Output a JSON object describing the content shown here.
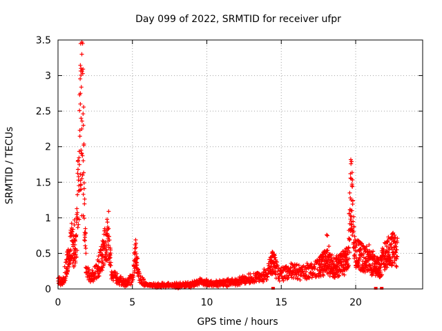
{
  "chart_data": {
    "type": "scatter",
    "title": "Day 099 of 2022, SRMTID for receiver ufpr",
    "xlabel": "GPS time / hours",
    "ylabel": "SRMTID / TECUs",
    "xlim": [
      0,
      24.5
    ],
    "ylim": [
      0,
      3.5
    ],
    "xticks": [
      0,
      5,
      10,
      15,
      20
    ],
    "xtick_labels": [
      "0",
      "5",
      "10",
      "15",
      "20"
    ],
    "yticks": [
      0,
      0.5,
      1,
      1.5,
      2,
      2.5,
      3,
      3.5
    ],
    "ytick_labels": [
      "0",
      "0.5",
      "1",
      "1.5",
      "2",
      "2.5",
      "3",
      "3.5"
    ],
    "grid": true,
    "marker": "+",
    "color": "#ff0000",
    "series": [
      {
        "name": "ufpr",
        "profile_hours": [
          0.0,
          0.3,
          0.6,
          0.9,
          1.2,
          1.5,
          1.65,
          1.75,
          1.9,
          2.2,
          2.6,
          3.0,
          3.4,
          3.6,
          4.0,
          4.5,
          5.0,
          5.2,
          5.5,
          6.0,
          7.0,
          8.0,
          9.0,
          9.5,
          10.0,
          11.0,
          12.0,
          13.0,
          14.0,
          14.5,
          14.8,
          15.5,
          16.5,
          17.5,
          18.0,
          18.5,
          19.0,
          19.5,
          19.7,
          19.9,
          20.3,
          20.8,
          21.2,
          21.6,
          22.0,
          22.5,
          22.8
        ],
        "profile_values": [
          0.12,
          0.08,
          0.35,
          0.65,
          0.5,
          2.2,
          3.4,
          1.2,
          0.25,
          0.15,
          0.25,
          0.5,
          0.75,
          0.2,
          0.15,
          0.08,
          0.15,
          0.5,
          0.15,
          0.05,
          0.05,
          0.05,
          0.06,
          0.1,
          0.08,
          0.08,
          0.1,
          0.15,
          0.2,
          0.4,
          0.2,
          0.25,
          0.22,
          0.3,
          0.4,
          0.3,
          0.35,
          0.4,
          1.5,
          0.55,
          0.45,
          0.4,
          0.35,
          0.3,
          0.5,
          0.55,
          0.5
        ],
        "extra_points": [
          [
            1.65,
            3.45
          ],
          [
            1.6,
            3.3
          ],
          [
            1.55,
            3.1
          ],
          [
            1.5,
            2.75
          ],
          [
            1.5,
            2.6
          ],
          [
            1.55,
            2.4
          ],
          [
            1.6,
            2.25
          ],
          [
            1.55,
            1.95
          ],
          [
            1.6,
            1.9
          ],
          [
            1.65,
            1.6
          ],
          [
            1.6,
            1.55
          ],
          [
            1.55,
            1.4
          ],
          [
            1.7,
            1.33
          ],
          [
            1.6,
            1.03
          ],
          [
            1.7,
            1.03
          ],
          [
            1.1,
            0.97
          ],
          [
            1.1,
            0.9
          ],
          [
            1.2,
            0.75
          ],
          [
            3.4,
            0.85
          ],
          [
            3.3,
            0.75
          ],
          [
            3.1,
            0.62
          ],
          [
            3.0,
            0.58
          ],
          [
            5.2,
            0.52
          ],
          [
            5.3,
            0.45
          ],
          [
            19.65,
            1.62
          ],
          [
            19.7,
            1.55
          ],
          [
            19.75,
            1.45
          ],
          [
            19.6,
            1.35
          ],
          [
            19.7,
            1.25
          ],
          [
            19.75,
            1.1
          ],
          [
            19.65,
            0.98
          ],
          [
            19.7,
            0.9
          ],
          [
            19.8,
            0.8
          ],
          [
            19.6,
            0.7
          ],
          [
            18.1,
            0.75
          ],
          [
            18.05,
            0.76
          ],
          [
            18.2,
            0.6
          ],
          [
            20.9,
            0.62
          ],
          [
            22.5,
            0.78
          ],
          [
            22.6,
            0.72
          ],
          [
            22.7,
            0.65
          ],
          [
            22.3,
            0.62
          ]
        ],
        "zero_markers": [
          14.45,
          21.35,
          21.75
        ]
      }
    ]
  }
}
